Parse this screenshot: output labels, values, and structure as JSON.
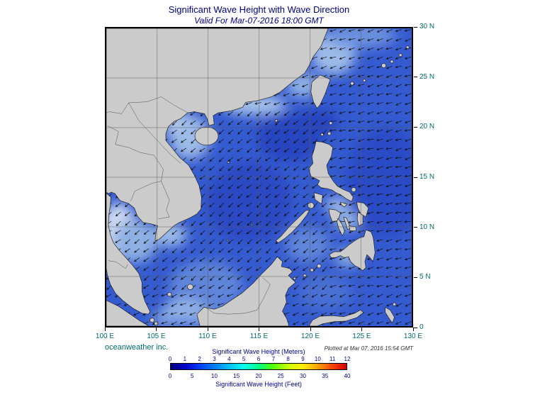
{
  "header": {
    "title": "Significant Wave Height with Wave Direction",
    "subtitle": "Valid For Mar-07-2016 18:00 GMT"
  },
  "footer": {
    "credit": "oceanweather inc.",
    "plotted_note": "Plotted at Mar 07, 2016 15:54 GMT"
  },
  "axes": {
    "lat_labels": [
      "30 N",
      "25 N",
      "20 N",
      "15 N",
      "10 N",
      "5 N",
      "0"
    ],
    "lon_labels": [
      "100 E",
      "105 E",
      "110 E",
      "115 E",
      "120 E",
      "125 E",
      "130 E"
    ]
  },
  "legend": {
    "meters_label": "Significant Wave Height (Meters)",
    "feet_label": "Significant Wave Height (Feet)",
    "meters_ticks": [
      "0",
      "1",
      "2",
      "3",
      "4",
      "5",
      "6",
      "7",
      "8",
      "9",
      "10",
      "11",
      "12"
    ],
    "feet_ticks": [
      "0",
      "5",
      "10",
      "15",
      "20",
      "25",
      "30",
      "35",
      "40"
    ],
    "gradient_colors": [
      "#000080",
      "#0000cd",
      "#0040ff",
      "#0080ff",
      "#00c0ff",
      "#00ffee",
      "#00ff88",
      "#55ff00",
      "#c8ff00",
      "#ffee00",
      "#ffa500",
      "#ff4500",
      "#d40000"
    ]
  },
  "colors": {
    "title_text": "#00008b",
    "axis_text": "#006b6b",
    "ocean_base": "#355bd0",
    "land": "#cbcbcb"
  }
}
